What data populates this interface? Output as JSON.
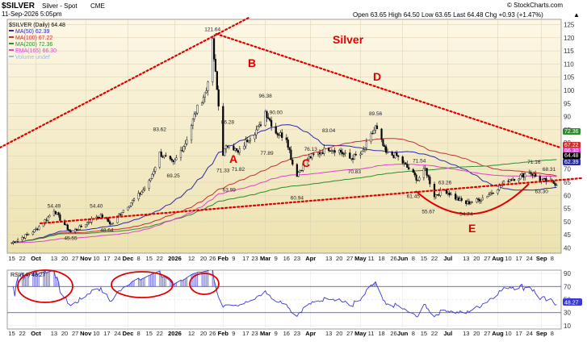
{
  "header": {
    "symbol": "$SILVER",
    "name": "Silver - Spot",
    "exchange": "CME",
    "date": "11-Sep-2026 5:05pm",
    "watermark": "© StockCharts.com",
    "quote": "Open 63.65  High 64.50  Low 63.65  Last 64.48  Chg +0.93 (+1.47%)",
    "quote_arrow": "▲"
  },
  "legend": [
    {
      "text": "$SILVER (Daily) 64.48",
      "color": "#000000"
    },
    {
      "text": "MA(50) 62.39",
      "color": "#2a2aa8"
    },
    {
      "text": "MA(100) 67.22",
      "color": "#c43030"
    },
    {
      "text": "MA(200) 72.36",
      "color": "#2e8b2e"
    },
    {
      "text": "EMA(165) 66.30",
      "color": "#e040d0"
    },
    {
      "text": "Volume undef",
      "color": "#a0b8e8"
    }
  ],
  "title_label": "Silver",
  "wave_labels": {
    "A": "A",
    "B": "B",
    "C": "C",
    "D": "D",
    "E": "E"
  },
  "price_axis": [
    "125",
    "120",
    "115",
    "110",
    "105",
    "100",
    "95",
    "90",
    "85",
    "80",
    "75",
    "70",
    "65",
    "60",
    "55",
    "50",
    "45",
    "40"
  ],
  "price_badges": [
    {
      "text": "72.36",
      "color": "#2e8b2e"
    },
    {
      "text": "67.22",
      "color": "#c43030"
    },
    {
      "text": "66.30",
      "color": "#e040d0"
    },
    {
      "text": "64.48",
      "color": "#000000"
    },
    {
      "text": "62.39",
      "color": "#2a2aa8"
    }
  ],
  "x_axis": [
    "15",
    "22",
    "Oct",
    "13",
    "20",
    "27",
    "Nov",
    "10",
    "17",
    "24",
    "Dec",
    "8",
    "15",
    "22",
    "2026",
    "12",
    "20",
    "26",
    "Feb",
    "9",
    "17",
    "23",
    "Mar",
    "9",
    "16",
    "23",
    "Apr",
    "13",
    "20",
    "27",
    "May",
    "11",
    "18",
    "26",
    "Jun",
    "8",
    "15",
    "22",
    "Jul",
    "13",
    "20",
    "27",
    "Aug",
    "10",
    "17",
    "24",
    "Sep",
    "8"
  ],
  "x_axis_bold": [
    "Oct",
    "Nov",
    "Dec",
    "2026",
    "Feb",
    "Mar",
    "Apr",
    "May",
    "Jun",
    "Jul",
    "Aug",
    "Sep"
  ],
  "rsi": {
    "label": "RSI(14) 48.27",
    "last": "48.27",
    "axis": [
      "90",
      "70",
      "50",
      "30",
      "10"
    ]
  },
  "colors": {
    "background_top": "#fdf7e6",
    "background_bottom": "#ece2b0",
    "trendline": "#e00000",
    "rsi_line": "#3a3ad0"
  },
  "chart_data": {
    "type": "candlestick",
    "title": "Silver",
    "ylim": [
      38,
      127
    ],
    "annotations": [
      {
        "label": "45.55",
        "x": "2025-10-24",
        "y": 45.55
      },
      {
        "label": "54.49",
        "x": "2025-10-13",
        "y": 54.49
      },
      {
        "label": "54.40",
        "x": "2025-11-10",
        "y": 54.4
      },
      {
        "label": "48.64",
        "x": "2025-11-17",
        "y": 48.64
      },
      {
        "label": "69.25",
        "x": "2025-12-31",
        "y": 69.25
      },
      {
        "label": "83.62",
        "x": "2025-12-22",
        "y": 83.62
      },
      {
        "label": "121.64",
        "x": "2026-01-26",
        "y": 121.64
      },
      {
        "label": "86.28",
        "x": "2026-02-05",
        "y": 86.28
      },
      {
        "label": "71.33",
        "x": "2026-02-02",
        "y": 71.33
      },
      {
        "label": "63.99",
        "x": "2026-02-06",
        "y": 63.99
      },
      {
        "label": "71.82",
        "x": "2026-02-12",
        "y": 71.82
      },
      {
        "label": "96.38",
        "x": "2026-03-02",
        "y": 96.38
      },
      {
        "label": "90.00",
        "x": "2026-03-09",
        "y": 90.0
      },
      {
        "label": "77.89",
        "x": "2026-03-03",
        "y": 77.89
      },
      {
        "label": "60.94",
        "x": "2026-03-23",
        "y": 60.94
      },
      {
        "label": "76.13",
        "x": "2026-04-01",
        "y": 76.13
      },
      {
        "label": "83.04",
        "x": "2026-04-13",
        "y": 83.04
      },
      {
        "label": "70.83",
        "x": "2026-04-30",
        "y": 70.83
      },
      {
        "label": "89.56",
        "x": "2026-05-14",
        "y": 89.56
      },
      {
        "label": "71.54",
        "x": "2026-06-12",
        "y": 71.54
      },
      {
        "label": "61.45",
        "x": "2026-06-08",
        "y": 61.45
      },
      {
        "label": "55.67",
        "x": "2026-06-18",
        "y": 55.67
      },
      {
        "label": "63.26",
        "x": "2026-06-29",
        "y": 63.26
      },
      {
        "label": "54.74",
        "x": "2026-07-13",
        "y": 54.74
      },
      {
        "label": "71.16",
        "x": "2026-08-27",
        "y": 71.16
      },
      {
        "label": "68.31",
        "x": "2026-09-06",
        "y": 68.31
      },
      {
        "label": "63.30",
        "x": "2026-09-01",
        "y": 63.3
      }
    ],
    "series": [
      {
        "name": "$SILVER (Daily)",
        "points": [
          {
            "x": "2025-09-15",
            "y": 42
          },
          {
            "x": "2025-09-22",
            "y": 44
          },
          {
            "x": "2025-10-01",
            "y": 47
          },
          {
            "x": "2025-10-08",
            "y": 51
          },
          {
            "x": "2025-10-13",
            "y": 54.49
          },
          {
            "x": "2025-10-17",
            "y": 51
          },
          {
            "x": "2025-10-24",
            "y": 46
          },
          {
            "x": "2025-10-31",
            "y": 48
          },
          {
            "x": "2025-11-10",
            "y": 52
          },
          {
            "x": "2025-11-14",
            "y": 52
          },
          {
            "x": "2025-11-20",
            "y": 49
          },
          {
            "x": "2025-11-27",
            "y": 54
          },
          {
            "x": "2025-12-08",
            "y": 60
          },
          {
            "x": "2025-12-15",
            "y": 65
          },
          {
            "x": "2025-12-22",
            "y": 76
          },
          {
            "x": "2025-12-31",
            "y": 72
          },
          {
            "x": "2026-01-08",
            "y": 80
          },
          {
            "x": "2026-01-15",
            "y": 92
          },
          {
            "x": "2026-01-22",
            "y": 100
          },
          {
            "x": "2026-01-26",
            "y": 118
          },
          {
            "x": "2026-01-29",
            "y": 100
          },
          {
            "x": "2026-02-02",
            "y": 76
          },
          {
            "x": "2026-02-06",
            "y": 80
          },
          {
            "x": "2026-02-12",
            "y": 76
          },
          {
            "x": "2026-02-19",
            "y": 82
          },
          {
            "x": "2026-02-26",
            "y": 86
          },
          {
            "x": "2026-03-02",
            "y": 92
          },
          {
            "x": "2026-03-09",
            "y": 84
          },
          {
            "x": "2026-03-16",
            "y": 82
          },
          {
            "x": "2026-03-20",
            "y": 72
          },
          {
            "x": "2026-03-23",
            "y": 68
          },
          {
            "x": "2026-03-30",
            "y": 74
          },
          {
            "x": "2026-04-06",
            "y": 76
          },
          {
            "x": "2026-04-13",
            "y": 78
          },
          {
            "x": "2026-04-20",
            "y": 77
          },
          {
            "x": "2026-04-27",
            "y": 74
          },
          {
            "x": "2026-05-05",
            "y": 76
          },
          {
            "x": "2026-05-14",
            "y": 86
          },
          {
            "x": "2026-05-21",
            "y": 76
          },
          {
            "x": "2026-05-28",
            "y": 75
          },
          {
            "x": "2026-06-05",
            "y": 70
          },
          {
            "x": "2026-06-11",
            "y": 66
          },
          {
            "x": "2026-06-16",
            "y": 70
          },
          {
            "x": "2026-06-22",
            "y": 60
          },
          {
            "x": "2026-06-29",
            "y": 62
          },
          {
            "x": "2026-07-06",
            "y": 59
          },
          {
            "x": "2026-07-13",
            "y": 57
          },
          {
            "x": "2026-07-20",
            "y": 58
          },
          {
            "x": "2026-07-27",
            "y": 60
          },
          {
            "x": "2026-08-03",
            "y": 63
          },
          {
            "x": "2026-08-10",
            "y": 66
          },
          {
            "x": "2026-08-17",
            "y": 67
          },
          {
            "x": "2026-08-24",
            "y": 69
          },
          {
            "x": "2026-08-31",
            "y": 66
          },
          {
            "x": "2026-09-11",
            "y": 64.48
          }
        ]
      }
    ]
  }
}
